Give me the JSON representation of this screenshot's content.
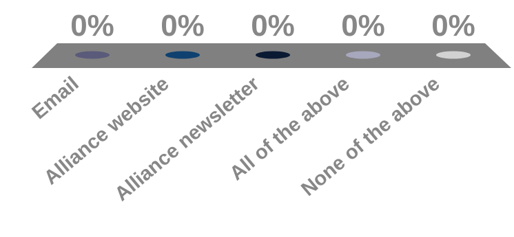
{
  "chart_data": {
    "type": "bar",
    "categories": [
      "Email",
      "Alliance website",
      "Alliance newsletter",
      "All of the above",
      "None of the above"
    ],
    "values": [
      0,
      0,
      0,
      0,
      0
    ],
    "value_labels": [
      "0%",
      "0%",
      "0%",
      "0%",
      "0%"
    ],
    "unit": "%",
    "ylim": [
      0,
      100
    ],
    "style": "3d",
    "grid": false,
    "legend": "none",
    "colors": {
      "floor": "#808080",
      "labels": "#878787",
      "series_points": [
        "#5a5a7a",
        "#0e4170",
        "#0a1a33",
        "#a7a7bd",
        "#d2d2d2"
      ]
    }
  }
}
